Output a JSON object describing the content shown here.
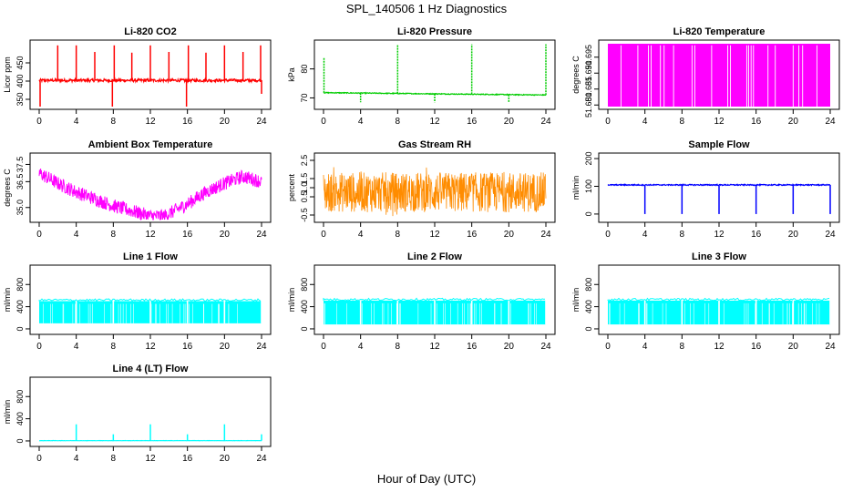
{
  "figure": {
    "title": "SPL_140506  1 Hz Diagnostics",
    "xlabel": "Hour of Day (UTC)"
  },
  "chart_data": [
    {
      "type": "line",
      "title": "Li-820 CO2",
      "xlabel": "",
      "ylabel": "Licor ppm",
      "color": "#ff0000",
      "xlim": [
        0,
        24
      ],
      "ylim": [
        330,
        505
      ],
      "xticks": [
        "0",
        "4",
        "8",
        "12",
        "16",
        "20",
        "24"
      ],
      "yticks": [
        "350",
        "400",
        "450"
      ],
      "baseline": 402,
      "noise": 4,
      "spikes": [
        [
          0.1,
          330
        ],
        [
          2.0,
          498
        ],
        [
          4.0,
          498
        ],
        [
          6.0,
          480
        ],
        [
          7.9,
          330
        ],
        [
          8.1,
          498
        ],
        [
          10.0,
          478
        ],
        [
          12.0,
          498
        ],
        [
          14.0,
          480
        ],
        [
          15.9,
          330
        ],
        [
          16.1,
          498
        ],
        [
          18.0,
          478
        ],
        [
          20.0,
          498
        ],
        [
          22.0,
          480
        ],
        [
          23.9,
          498
        ],
        [
          24.0,
          365
        ]
      ]
    },
    {
      "type": "line",
      "title": "Li-820 Pressure",
      "xlabel": "",
      "ylabel": "kPa",
      "color": "#00cc00",
      "xlim": [
        0,
        24
      ],
      "ylim": [
        67,
        89
      ],
      "xticks": [
        "0",
        "4",
        "8",
        "12",
        "16",
        "20",
        "24"
      ],
      "yticks": [
        "70",
        "80"
      ],
      "start": 71.8,
      "end": 71.0,
      "noise": 0.15,
      "spikes": [
        [
          0.05,
          84
        ],
        [
          4.0,
          68.5
        ],
        [
          8.0,
          88.5
        ],
        [
          12.0,
          68.5
        ],
        [
          16.0,
          88.5
        ],
        [
          20.0,
          68.5
        ],
        [
          24.0,
          88.5
        ]
      ]
    },
    {
      "type": "area",
      "title": "Li-820 Temperature",
      "xlabel": "",
      "ylabel": "degrees C",
      "color": "#ff00ff",
      "xlim": [
        0,
        24
      ],
      "ylim": [
        51.6795,
        51.6995
      ],
      "xticks": [
        "0",
        "4",
        "8",
        "12",
        "16",
        "20",
        "24"
      ],
      "yticks": [
        "51.680",
        "51.685",
        "51.690",
        "51.695"
      ],
      "value_high": 51.699,
      "value_low": 51.6795
    },
    {
      "type": "line",
      "title": "Ambient Box Temperature",
      "xlabel": "",
      "ylabel": "degrees C",
      "color": "#ff00ff",
      "xlim": [
        0,
        24
      ],
      "ylim": [
        34.3,
        38.0
      ],
      "xticks": [
        "0",
        "4",
        "8",
        "12",
        "16",
        "20",
        "24"
      ],
      "yticks": [
        "35.0",
        "36.5",
        "37.5"
      ],
      "key_x": [
        0,
        2,
        4,
        6,
        8,
        10,
        12,
        13.5,
        16,
        18,
        20,
        22,
        24
      ],
      "key_y": [
        37.0,
        36.4,
        35.9,
        35.5,
        35.1,
        34.8,
        34.5,
        34.5,
        35.2,
        35.9,
        36.4,
        36.8,
        36.5
      ],
      "band": 0.8
    },
    {
      "type": "line",
      "title": "Gas Stream RH",
      "xlabel": "",
      "ylabel": "percent",
      "color": "#ff8c00",
      "xlim": [
        0,
        24
      ],
      "ylim": [
        -0.75,
        2.75
      ],
      "xticks": [
        "0",
        "4",
        "8",
        "12",
        "16",
        "20",
        "24"
      ],
      "yticks": [
        "-0.5",
        "0.5",
        "1.0",
        "1.5",
        "2.5"
      ],
      "center": 0.75,
      "band": 2.2
    },
    {
      "type": "line",
      "title": "Sample Flow",
      "xlabel": "",
      "ylabel": "ml/min",
      "color": "#0000ff",
      "xlim": [
        0,
        24
      ],
      "ylim": [
        -20,
        210
      ],
      "xticks": [
        "0",
        "4",
        "8",
        "12",
        "16",
        "20",
        "24"
      ],
      "yticks": [
        "0",
        "100",
        "200"
      ],
      "baseline": 105,
      "noise": 2,
      "spikes": [
        [
          4.0,
          0
        ],
        [
          8.0,
          0
        ],
        [
          12.0,
          0
        ],
        [
          16.0,
          0
        ],
        [
          20.0,
          0
        ],
        [
          24.0,
          0
        ]
      ]
    },
    {
      "type": "area",
      "title": "Line 1 Flow",
      "xlabel": "",
      "ylabel": "ml/min",
      "color": "#00ffff",
      "xlim": [
        0,
        24
      ],
      "ylim": [
        -50,
        1100
      ],
      "xticks": [
        "0",
        "4",
        "8",
        "12",
        "16",
        "20",
        "24"
      ],
      "yticks": [
        "0",
        "400",
        "800"
      ],
      "value_high": 500,
      "value_low": 100,
      "gaps": [
        4.0,
        8.0,
        12.0,
        16.0,
        20.0,
        24.0
      ]
    },
    {
      "type": "area",
      "title": "Line 2 Flow",
      "xlabel": "",
      "ylabel": "ml/min",
      "color": "#00ffff",
      "xlim": [
        0,
        24
      ],
      "ylim": [
        -50,
        1100
      ],
      "xticks": [
        "0",
        "4",
        "8",
        "12",
        "16",
        "20",
        "24"
      ],
      "yticks": [
        "0",
        "400",
        "800"
      ],
      "value_high": 510,
      "value_low": 80,
      "gaps": [
        4.0,
        8.0,
        12.0,
        16.0,
        20.0,
        24.0
      ]
    },
    {
      "type": "area",
      "title": "Line 3 Flow",
      "xlabel": "",
      "ylabel": "ml/min",
      "color": "#00ffff",
      "xlim": [
        0,
        24
      ],
      "ylim": [
        -50,
        1100
      ],
      "xticks": [
        "0",
        "4",
        "8",
        "12",
        "16",
        "20",
        "24"
      ],
      "yticks": [
        "0",
        "400",
        "800"
      ],
      "value_high": 510,
      "value_low": 80,
      "gaps": [
        4.0,
        8.0,
        12.0,
        16.0,
        20.0,
        24.0
      ]
    },
    {
      "type": "line",
      "title": "Line 4 (LT) Flow",
      "xlabel": "",
      "ylabel": "ml/min",
      "color": "#00ffff",
      "xlim": [
        0,
        24
      ],
      "ylim": [
        -50,
        1100
      ],
      "xticks": [
        "0",
        "4",
        "8",
        "12",
        "16",
        "20",
        "24"
      ],
      "yticks": [
        "0",
        "400",
        "800"
      ],
      "baseline": 5,
      "noise": 2,
      "spikes": [
        [
          4.0,
          300
        ],
        [
          8.0,
          120
        ],
        [
          12.0,
          300
        ],
        [
          16.0,
          120
        ],
        [
          20.0,
          300
        ],
        [
          24.0,
          120
        ]
      ]
    }
  ]
}
